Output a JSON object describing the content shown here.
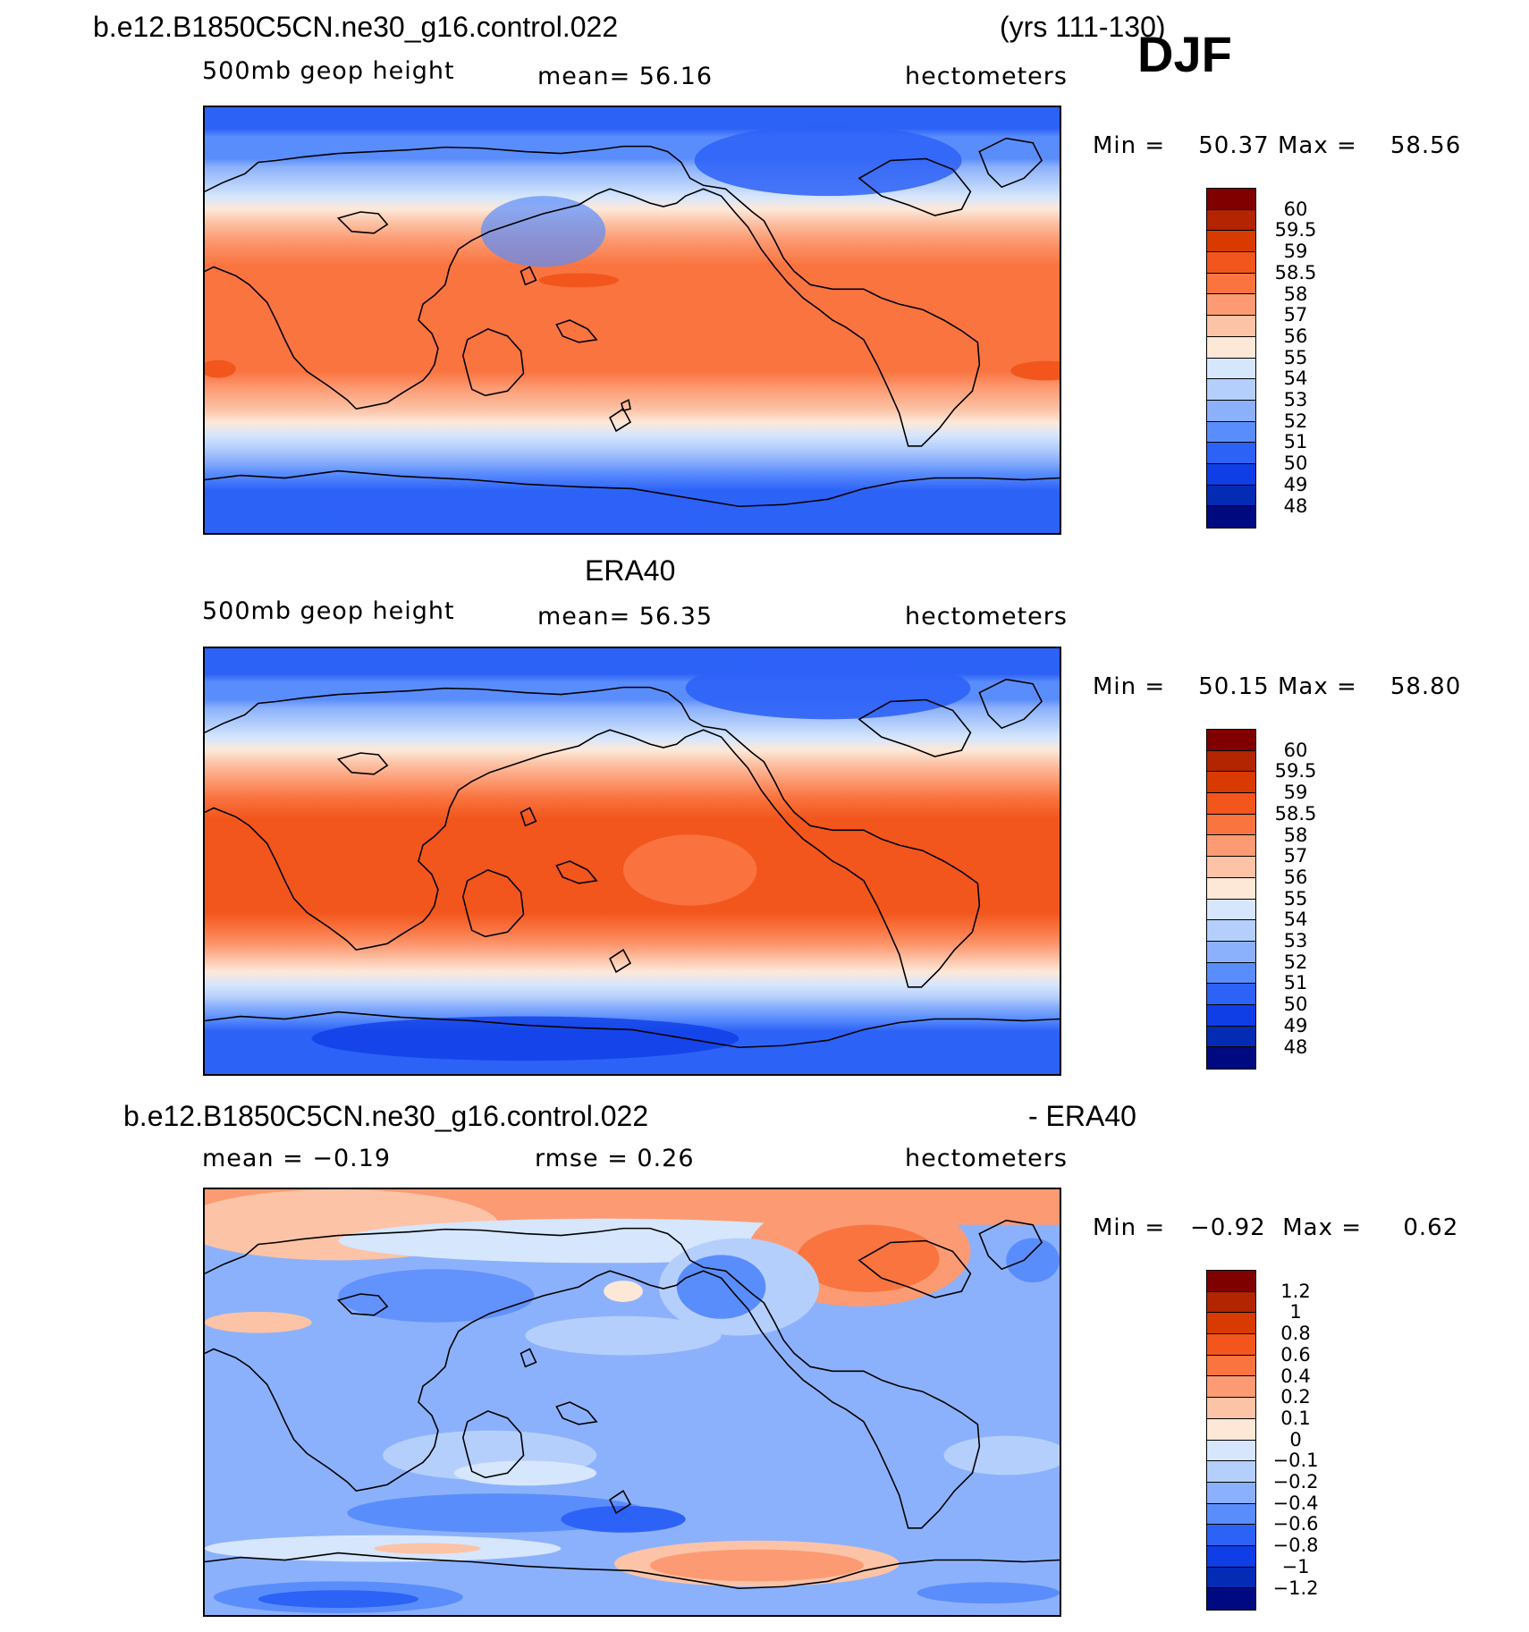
{
  "season": "DJF",
  "panels": [
    {
      "id": "model",
      "title_left": "b.e12.B1850C5CN.ne30_g16.control.022",
      "title_right": "(yrs 111-130)",
      "variable": "500mb  geop  height",
      "mean_text": "mean=   56.16",
      "units": "hectometers",
      "min_label": "Min  =",
      "min_value": "50.37",
      "max_label": "Max  =",
      "max_value": "58.56"
    },
    {
      "id": "era40",
      "title_center": "ERA40",
      "variable": "500mb  geop  height",
      "mean_text": "mean=   56.35",
      "units": "hectometers",
      "min_label": "Min  =",
      "min_value": "50.15",
      "max_label": "Max  =",
      "max_value": "58.80"
    },
    {
      "id": "difference",
      "title_left": "b.e12.B1850C5CN.ne30_g16.control.022",
      "title_right": "- ERA40",
      "mean_text": "mean =   −0.19",
      "rmse_text": "rmse =     0.26",
      "units": "hectometers",
      "min_label": "Min  =",
      "min_value": "−0.92",
      "max_label": "Max  =",
      "max_value": "0.62"
    }
  ],
  "colorbars": {
    "height": {
      "labels": [
        "60",
        "59.5",
        "59",
        "58.5",
        "58",
        "57",
        "56",
        "55",
        "54",
        "53",
        "52",
        "51",
        "50",
        "49",
        "48"
      ],
      "colors": [
        "#800000",
        "#b32400",
        "#d93a00",
        "#f2561d",
        "#fa7440",
        "#fc9b73",
        "#fcc3a6",
        "#fde8d8",
        "#d6e6fc",
        "#b5cffc",
        "#8cb1fc",
        "#5a8dfc",
        "#2d62f7",
        "#0f3ee6",
        "#032bb3",
        "#000a80"
      ]
    },
    "difference": {
      "labels": [
        "1.2",
        "1",
        "0.8",
        "0.6",
        "0.4",
        "0.2",
        "0.1",
        "0",
        "−0.1",
        "−0.2",
        "−0.4",
        "−0.6",
        "−0.8",
        "−1",
        "−1.2"
      ],
      "colors": [
        "#800000",
        "#b32400",
        "#d93a00",
        "#f2561d",
        "#fa7440",
        "#fc9b73",
        "#fcc3a6",
        "#fde8d8",
        "#d6e6fc",
        "#b5cffc",
        "#8cb1fc",
        "#5a8dfc",
        "#2d62f7",
        "#0f3ee6",
        "#032bb3",
        "#000a80"
      ]
    }
  }
}
